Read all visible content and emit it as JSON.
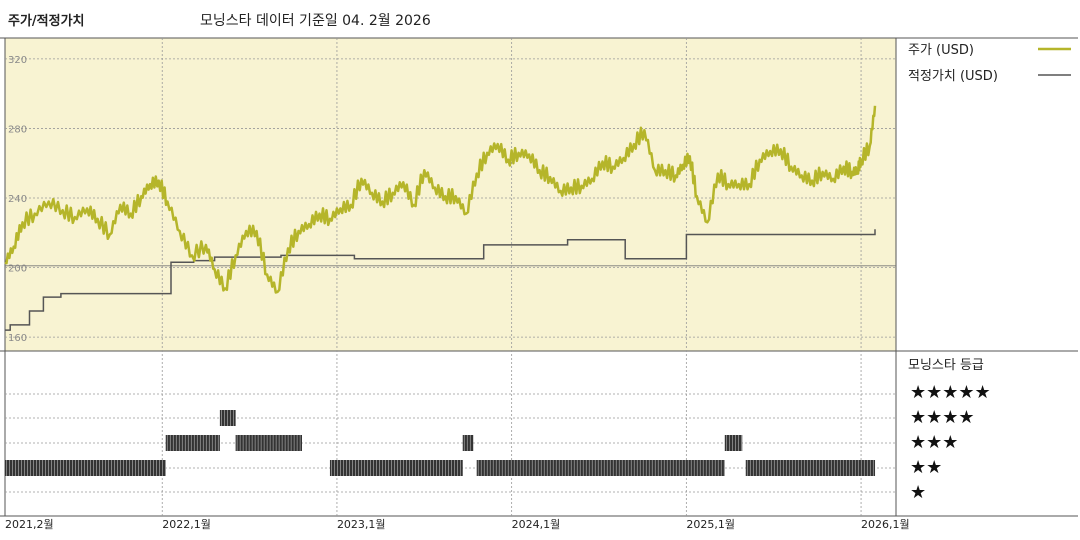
{
  "header": {
    "title": "주가/적정가치",
    "subtitle": "모닝스타 데이터 기준일 04. 2월 2026"
  },
  "colors": {
    "price": "#b5b52a",
    "fair_value": "#555555",
    "plot_bg": "#f8f3d2",
    "rating_bar": "#333333"
  },
  "chart_data": [
    {
      "type": "line",
      "title": "",
      "y_ticks": [
        160,
        200,
        240,
        280,
        320
      ],
      "ylim": [
        152,
        332
      ],
      "xlim": [
        2021.1,
        2026.2
      ],
      "x_ticks": [
        {
          "x": 2021.1,
          "label": "2021,2월"
        },
        {
          "x": 2022.0,
          "label": "2022,1월"
        },
        {
          "x": 2023.0,
          "label": "2023,1월"
        },
        {
          "x": 2024.0,
          "label": "2024,1월"
        },
        {
          "x": 2025.0,
          "label": "2025,1월"
        },
        {
          "x": 2026.0,
          "label": "2026,1월"
        }
      ],
      "legend": {
        "position": "right",
        "items": [
          "주가 (USD)",
          "적정가치 (USD)"
        ]
      },
      "series": [
        {
          "name": "주가 (USD)",
          "x": [
            2021.1,
            2021.15,
            2021.2,
            2021.27,
            2021.35,
            2021.43,
            2021.5,
            2021.57,
            2021.63,
            2021.7,
            2021.76,
            2021.82,
            2021.88,
            2021.93,
            2021.98,
            2022.03,
            2022.1,
            2022.17,
            2022.25,
            2022.3,
            2022.36,
            2022.42,
            2022.48,
            2022.54,
            2022.6,
            2022.66,
            2022.72,
            2022.78,
            2022.84,
            2022.9,
            2022.96,
            2023.02,
            2023.08,
            2023.14,
            2023.2,
            2023.26,
            2023.32,
            2023.38,
            2023.44,
            2023.5,
            2023.56,
            2023.62,
            2023.68,
            2023.74,
            2023.8,
            2023.86,
            2023.92,
            2023.98,
            2024.04,
            2024.1,
            2024.16,
            2024.22,
            2024.28,
            2024.34,
            2024.4,
            2024.46,
            2024.52,
            2024.58,
            2024.64,
            2024.7,
            2024.76,
            2024.82,
            2024.88,
            2024.94,
            2024.98,
            2025.02,
            2025.06,
            2025.12,
            2025.18,
            2025.24,
            2025.3,
            2025.36,
            2025.42,
            2025.48,
            2025.54,
            2025.6,
            2025.66,
            2025.72,
            2025.78,
            2025.84,
            2025.9,
            2025.95,
            2025.98,
            2026.0,
            2026.05,
            2026.08
          ],
          "values": [
            203,
            212,
            226,
            231,
            238,
            233,
            229,
            234,
            228,
            219,
            236,
            231,
            241,
            248,
            250,
            238,
            221,
            207,
            213,
            199,
            188,
            207,
            221,
            221,
            196,
            186,
            211,
            221,
            225,
            231,
            228,
            234,
            236,
            251,
            243,
            238,
            243,
            249,
            236,
            256,
            246,
            241,
            241,
            231,
            254,
            266,
            271,
            262,
            266,
            265,
            256,
            252,
            244,
            246,
            247,
            251,
            261,
            258,
            263,
            271,
            279,
            256,
            256,
            253,
            259,
            264,
            241,
            226,
            254,
            248,
            248,
            248,
            262,
            267,
            268,
            258,
            253,
            250,
            255,
            251,
            258,
            255,
            256,
            262,
            270,
            293
          ]
        },
        {
          "name": "적정가치 (USD)",
          "x": [
            2021.1,
            2021.13,
            2021.24,
            2021.32,
            2021.42,
            2021.55,
            2021.82,
            2022.0,
            2022.05,
            2022.18,
            2022.3,
            2022.68,
            2023.0,
            2023.1,
            2023.28,
            2023.6,
            2023.72,
            2023.84,
            2024.0,
            2024.15,
            2024.32,
            2024.5,
            2024.6,
            2024.65,
            2025.0,
            2025.2,
            2025.8,
            2026.08
          ],
          "values": [
            164,
            167,
            175,
            183,
            185,
            185,
            185,
            185,
            203,
            204,
            206,
            207,
            207,
            205,
            205,
            205,
            205,
            213,
            213,
            213,
            216,
            216,
            216,
            205,
            219,
            219,
            219,
            222
          ]
        }
      ]
    },
    {
      "type": "table",
      "title": "모닝스타 등급",
      "levels": [
        "★★★★★",
        "★★★★",
        "★★★",
        "★★",
        "★"
      ],
      "segments": [
        {
          "start": 2021.1,
          "end": 2022.02,
          "stars": 2
        },
        {
          "start": 2022.02,
          "end": 2022.33,
          "stars": 3
        },
        {
          "start": 2022.33,
          "end": 2022.42,
          "stars": 4
        },
        {
          "start": 2022.42,
          "end": 2022.8,
          "stars": 3
        },
        {
          "start": 2022.96,
          "end": 2023.72,
          "stars": 2
        },
        {
          "start": 2023.72,
          "end": 2023.78,
          "stars": 3
        },
        {
          "start": 2023.8,
          "end": 2025.22,
          "stars": 2
        },
        {
          "start": 2025.22,
          "end": 2025.32,
          "stars": 3
        },
        {
          "start": 2025.34,
          "end": 2026.08,
          "stars": 2
        }
      ]
    }
  ]
}
